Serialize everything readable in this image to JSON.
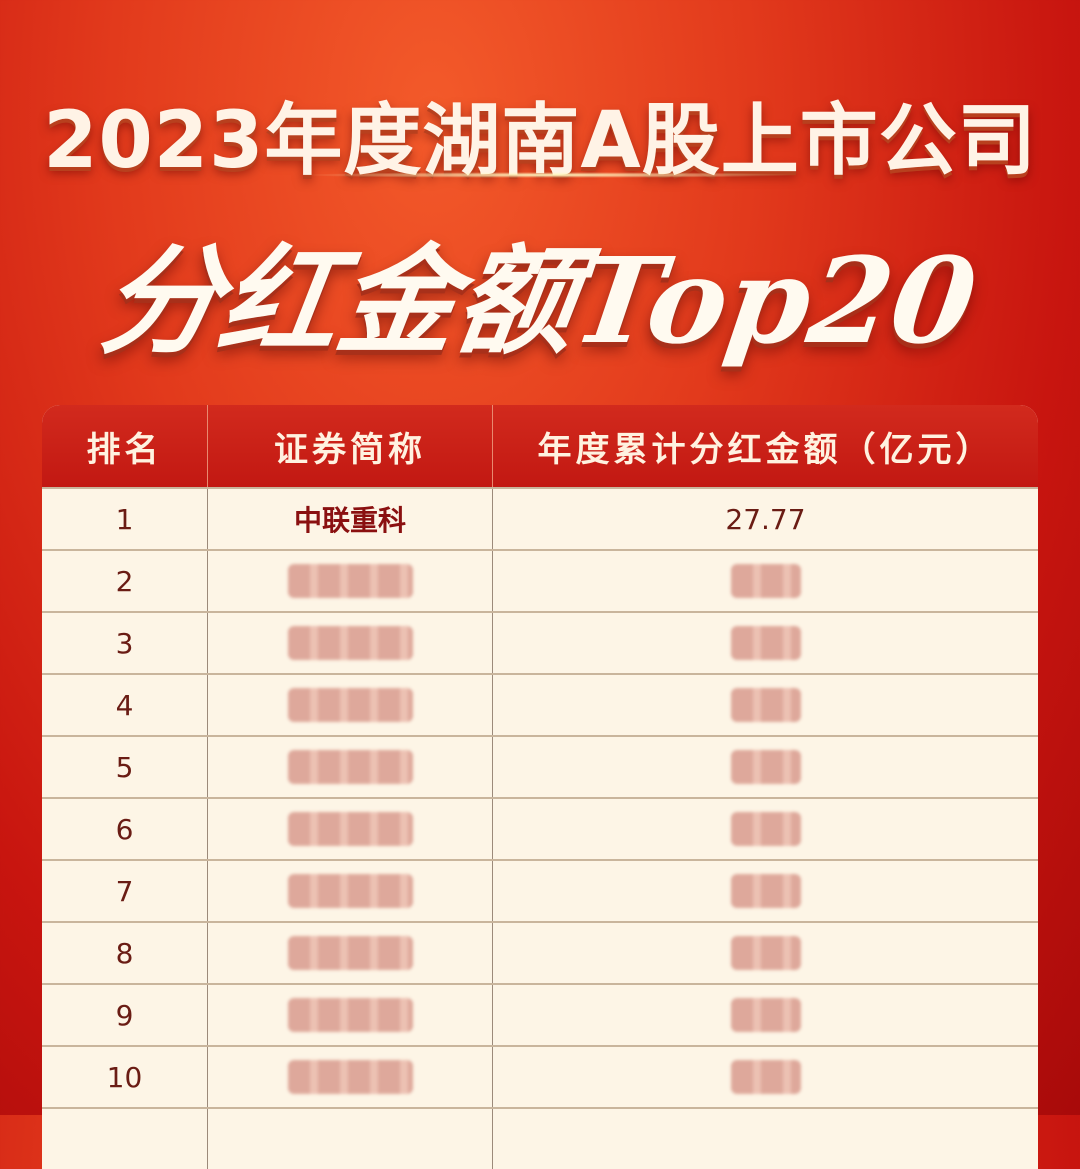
{
  "title_line1": "2023年度湖南A股上市公司",
  "title_line2": "分红金额Top20",
  "table": {
    "headers": [
      "排名",
      "证券简称",
      "年度累计分红金额（亿元）"
    ],
    "rows": [
      {
        "rank": "1",
        "name": "中联重科",
        "amount": "27.77"
      },
      {
        "rank": "2",
        "name": "",
        "amount": ""
      },
      {
        "rank": "3",
        "name": "",
        "amount": ""
      },
      {
        "rank": "4",
        "name": "",
        "amount": ""
      },
      {
        "rank": "5",
        "name": "",
        "amount": ""
      },
      {
        "rank": "6",
        "name": "",
        "amount": ""
      },
      {
        "rank": "7",
        "name": "",
        "amount": ""
      },
      {
        "rank": "8",
        "name": "",
        "amount": ""
      },
      {
        "rank": "9",
        "name": "",
        "amount": ""
      },
      {
        "rank": "10",
        "name": "",
        "amount": ""
      },
      {
        "rank": "",
        "name": "",
        "amount": ""
      }
    ]
  },
  "colors": {
    "background": "#d42818",
    "header": "#c21812",
    "table_bg": "#fdf5e6"
  }
}
